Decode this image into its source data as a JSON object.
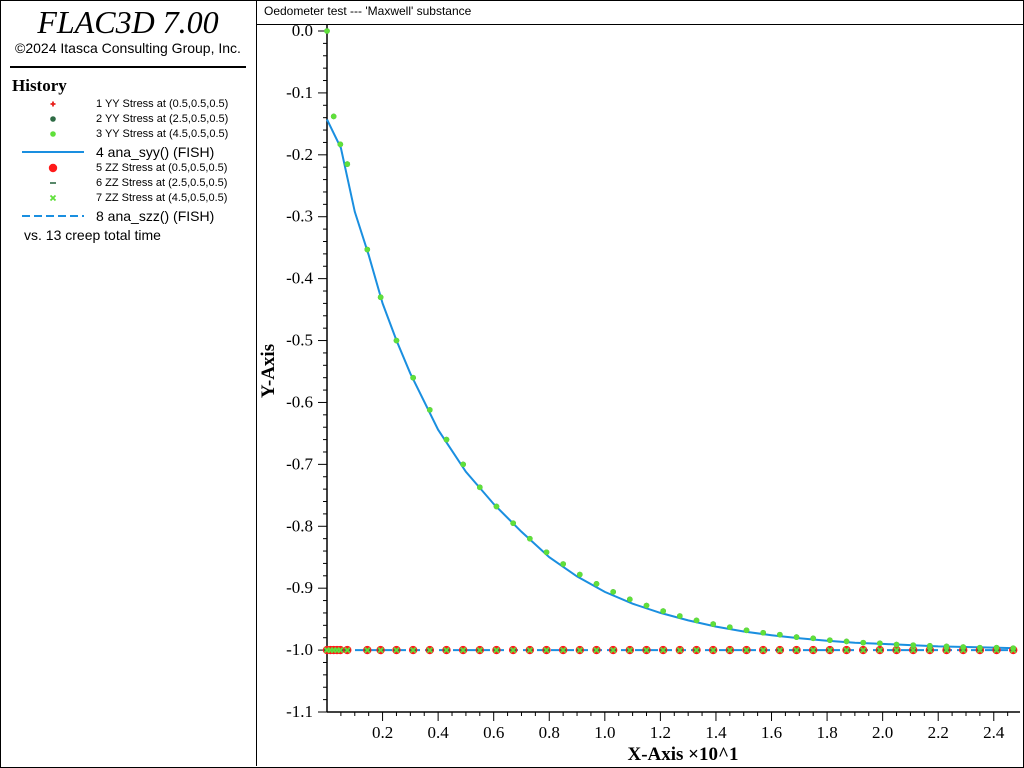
{
  "app": {
    "title": "FLAC3D 7.00",
    "copyright": "©2024 Itasca Consulting Group, Inc."
  },
  "legend": {
    "heading": "History",
    "footer": "vs. 13 creep total time",
    "items": [
      {
        "label": "1 YY Stress at (0.5,0.5,0.5)",
        "marker": "plus",
        "color": "#e8201c"
      },
      {
        "label": "2 YY Stress at (2.5,0.5,0.5)",
        "marker": "dot",
        "color": "#2e6b45"
      },
      {
        "label": "3 YY Stress at (4.5,0.5,0.5)",
        "marker": "dot",
        "color": "#5fe03a"
      },
      {
        "label": "4 ana_syy() (FISH)",
        "marker": "solid-line",
        "color": "#1a8fe0"
      },
      {
        "label": "5 ZZ Stress at (0.5,0.5,0.5)",
        "marker": "big-dot",
        "color": "#ff1a1a"
      },
      {
        "label": "6 ZZ Stress at (2.5,0.5,0.5)",
        "marker": "dash",
        "color": "#2e6b45"
      },
      {
        "label": "7 ZZ Stress at (4.5,0.5,0.5)",
        "marker": "x",
        "color": "#5fe03a"
      },
      {
        "label": "8 ana_szz() (FISH)",
        "marker": "dashed-line",
        "color": "#1a8fe0"
      }
    ]
  },
  "chart_data": {
    "type": "line",
    "title": "Oedometer test --- 'Maxwell' substance",
    "xlabel": "X-Axis ×10^1",
    "ylabel": "Y-Axis",
    "xlim": [
      0.0,
      2.48
    ],
    "ylim": [
      -1.1,
      0.0
    ],
    "xticks": [
      "0.2",
      "0.4",
      "0.6",
      "0.8",
      "1.0",
      "1.2",
      "1.4",
      "1.6",
      "1.8",
      "2.0",
      "2.2",
      "2.4"
    ],
    "yticks": [
      "0.0",
      "-0.1",
      "-0.2",
      "-0.3",
      "-0.4",
      "-0.5",
      "-0.6",
      "-0.7",
      "-0.8",
      "-0.9",
      "-1.0",
      "-1.1"
    ],
    "grid": false,
    "series": [
      {
        "name": "1 YY Stress at (0.5,0.5,0.5)",
        "color": "#e8201c",
        "style": "markers",
        "x": [
          0.0,
          0.024,
          0.048,
          0.073,
          0.145,
          0.193,
          0.25,
          0.31,
          0.37,
          0.43,
          0.49,
          0.55,
          0.61,
          0.67,
          0.73,
          0.79,
          0.85,
          0.91,
          0.97,
          1.03,
          1.09,
          1.15,
          1.21,
          1.27,
          1.33,
          1.39,
          1.45,
          1.51,
          1.57,
          1.63,
          1.69,
          1.75,
          1.81,
          1.87,
          1.93,
          1.99,
          2.05,
          2.11,
          2.17,
          2.23,
          2.29,
          2.35,
          2.41,
          2.47
        ],
        "y": [
          0.0,
          -0.138,
          -0.183,
          -0.215,
          -0.353,
          -0.43,
          -0.5,
          -0.56,
          -0.612,
          -0.66,
          -0.7,
          -0.737,
          -0.768,
          -0.795,
          -0.82,
          -0.842,
          -0.861,
          -0.878,
          -0.893,
          -0.906,
          -0.918,
          -0.928,
          -0.937,
          -0.945,
          -0.952,
          -0.958,
          -0.963,
          -0.968,
          -0.972,
          -0.975,
          -0.979,
          -0.981,
          -0.984,
          -0.986,
          -0.988,
          -0.989,
          -0.991,
          -0.992,
          -0.993,
          -0.994,
          -0.995,
          -0.996,
          -0.996,
          -0.997
        ]
      },
      {
        "name": "2 YY Stress at (2.5,0.5,0.5)",
        "color": "#2e6b45",
        "style": "markers",
        "x": [
          0.0,
          0.024,
          0.048,
          0.073,
          0.145,
          0.193,
          0.25,
          0.31,
          0.37,
          0.43,
          0.49,
          0.55,
          0.61,
          0.67,
          0.73,
          0.79,
          0.85,
          0.91,
          0.97,
          1.03,
          1.09,
          1.15,
          1.21,
          1.27,
          1.33,
          1.39,
          1.45,
          1.51,
          1.57,
          1.63,
          1.69,
          1.75,
          1.81,
          1.87,
          1.93,
          1.99,
          2.05,
          2.11,
          2.17,
          2.23,
          2.29,
          2.35,
          2.41,
          2.47
        ],
        "y": [
          0.0,
          -0.138,
          -0.183,
          -0.215,
          -0.353,
          -0.43,
          -0.5,
          -0.56,
          -0.612,
          -0.66,
          -0.7,
          -0.737,
          -0.768,
          -0.795,
          -0.82,
          -0.842,
          -0.861,
          -0.878,
          -0.893,
          -0.906,
          -0.918,
          -0.928,
          -0.937,
          -0.945,
          -0.952,
          -0.958,
          -0.963,
          -0.968,
          -0.972,
          -0.975,
          -0.979,
          -0.981,
          -0.984,
          -0.986,
          -0.988,
          -0.989,
          -0.991,
          -0.992,
          -0.993,
          -0.994,
          -0.995,
          -0.996,
          -0.996,
          -0.997
        ]
      },
      {
        "name": "3 YY Stress at (4.5,0.5,0.5)",
        "color": "#5fe03a",
        "style": "markers",
        "x": [
          0.0,
          0.024,
          0.048,
          0.073,
          0.145,
          0.193,
          0.25,
          0.31,
          0.37,
          0.43,
          0.49,
          0.55,
          0.61,
          0.67,
          0.73,
          0.79,
          0.85,
          0.91,
          0.97,
          1.03,
          1.09,
          1.15,
          1.21,
          1.27,
          1.33,
          1.39,
          1.45,
          1.51,
          1.57,
          1.63,
          1.69,
          1.75,
          1.81,
          1.87,
          1.93,
          1.99,
          2.05,
          2.11,
          2.17,
          2.23,
          2.29,
          2.35,
          2.41,
          2.47
        ],
        "y": [
          0.0,
          -0.138,
          -0.183,
          -0.215,
          -0.353,
          -0.43,
          -0.5,
          -0.56,
          -0.612,
          -0.66,
          -0.7,
          -0.737,
          -0.768,
          -0.795,
          -0.82,
          -0.842,
          -0.861,
          -0.878,
          -0.893,
          -0.906,
          -0.918,
          -0.928,
          -0.937,
          -0.945,
          -0.952,
          -0.958,
          -0.963,
          -0.968,
          -0.972,
          -0.975,
          -0.979,
          -0.981,
          -0.984,
          -0.986,
          -0.988,
          -0.989,
          -0.991,
          -0.992,
          -0.993,
          -0.994,
          -0.995,
          -0.996,
          -0.996,
          -0.997
        ]
      },
      {
        "name": "4 ana_syy() (FISH)",
        "color": "#1a8fe0",
        "style": "solid-line",
        "x": [
          0.0,
          0.05,
          0.1,
          0.15,
          0.2,
          0.25,
          0.3,
          0.4,
          0.5,
          0.6,
          0.7,
          0.8,
          0.9,
          1.0,
          1.1,
          1.2,
          1.3,
          1.4,
          1.5,
          1.6,
          1.7,
          1.8,
          1.9,
          2.0,
          2.1,
          2.2,
          2.3,
          2.4,
          2.48
        ],
        "y": [
          -0.143,
          -0.189,
          -0.292,
          -0.362,
          -0.44,
          -0.5,
          -0.553,
          -0.644,
          -0.712,
          -0.764,
          -0.809,
          -0.85,
          -0.881,
          -0.906,
          -0.925,
          -0.94,
          -0.952,
          -0.962,
          -0.97,
          -0.976,
          -0.981,
          -0.985,
          -0.988,
          -0.99,
          -0.992,
          -0.994,
          -0.995,
          -0.996,
          -0.997
        ]
      },
      {
        "name": "5 ZZ Stress at (0.5,0.5,0.5)",
        "color": "#ff1a1a",
        "style": "markers",
        "x": [
          0.0,
          0.012,
          0.024,
          0.036,
          0.048,
          0.073,
          0.145,
          0.193,
          0.25,
          0.31,
          0.37,
          0.43,
          0.49,
          0.55,
          0.61,
          0.67,
          0.73,
          0.79,
          0.85,
          0.91,
          0.97,
          1.03,
          1.09,
          1.15,
          1.21,
          1.27,
          1.33,
          1.39,
          1.45,
          1.51,
          1.57,
          1.63,
          1.69,
          1.75,
          1.81,
          1.87,
          1.93,
          1.99,
          2.05,
          2.11,
          2.17,
          2.23,
          2.29,
          2.35,
          2.41,
          2.47
        ],
        "y": [
          -1.0,
          -1.0,
          -1.0,
          -1.0,
          -1.0,
          -1.0,
          -1.0,
          -1.0,
          -1.0,
          -1.0,
          -1.0,
          -1.0,
          -1.0,
          -1.0,
          -1.0,
          -1.0,
          -1.0,
          -1.0,
          -1.0,
          -1.0,
          -1.0,
          -1.0,
          -1.0,
          -1.0,
          -1.0,
          -1.0,
          -1.0,
          -1.0,
          -1.0,
          -1.0,
          -1.0,
          -1.0,
          -1.0,
          -1.0,
          -1.0,
          -1.0,
          -1.0,
          -1.0,
          -1.0,
          -1.0,
          -1.0,
          -1.0,
          -1.0,
          -1.0,
          -1.0,
          -1.0
        ]
      },
      {
        "name": "6 ZZ Stress at (2.5,0.5,0.5)",
        "color": "#2e6b45",
        "style": "markers",
        "x": [
          0.0,
          0.012,
          0.024,
          0.036,
          0.048,
          0.073,
          0.145,
          0.193,
          0.25,
          0.31,
          0.37,
          0.43,
          0.49,
          0.55,
          0.61,
          0.67,
          0.73,
          0.79,
          0.85,
          0.91,
          0.97,
          1.03,
          1.09,
          1.15,
          1.21,
          1.27,
          1.33,
          1.39,
          1.45,
          1.51,
          1.57,
          1.63,
          1.69,
          1.75,
          1.81,
          1.87,
          1.93,
          1.99,
          2.05,
          2.11,
          2.17,
          2.23,
          2.29,
          2.35,
          2.41,
          2.47
        ],
        "y": [
          -1.0,
          -1.0,
          -1.0,
          -1.0,
          -1.0,
          -1.0,
          -1.0,
          -1.0,
          -1.0,
          -1.0,
          -1.0,
          -1.0,
          -1.0,
          -1.0,
          -1.0,
          -1.0,
          -1.0,
          -1.0,
          -1.0,
          -1.0,
          -1.0,
          -1.0,
          -1.0,
          -1.0,
          -1.0,
          -1.0,
          -1.0,
          -1.0,
          -1.0,
          -1.0,
          -1.0,
          -1.0,
          -1.0,
          -1.0,
          -1.0,
          -1.0,
          -1.0,
          -1.0,
          -1.0,
          -1.0,
          -1.0,
          -1.0,
          -1.0,
          -1.0,
          -1.0,
          -1.0
        ]
      },
      {
        "name": "7 ZZ Stress at (4.5,0.5,0.5)",
        "color": "#5fe03a",
        "style": "markers",
        "x": [
          0.0,
          0.012,
          0.024,
          0.036,
          0.048,
          0.073,
          0.145,
          0.193,
          0.25,
          0.31,
          0.37,
          0.43,
          0.49,
          0.55,
          0.61,
          0.67,
          0.73,
          0.79,
          0.85,
          0.91,
          0.97,
          1.03,
          1.09,
          1.15,
          1.21,
          1.27,
          1.33,
          1.39,
          1.45,
          1.51,
          1.57,
          1.63,
          1.69,
          1.75,
          1.81,
          1.87,
          1.93,
          1.99,
          2.05,
          2.11,
          2.17,
          2.23,
          2.29,
          2.35,
          2.41,
          2.47
        ],
        "y": [
          -1.0,
          -1.0,
          -1.0,
          -1.0,
          -1.0,
          -1.0,
          -1.0,
          -1.0,
          -1.0,
          -1.0,
          -1.0,
          -1.0,
          -1.0,
          -1.0,
          -1.0,
          -1.0,
          -1.0,
          -1.0,
          -1.0,
          -1.0,
          -1.0,
          -1.0,
          -1.0,
          -1.0,
          -1.0,
          -1.0,
          -1.0,
          -1.0,
          -1.0,
          -1.0,
          -1.0,
          -1.0,
          -1.0,
          -1.0,
          -1.0,
          -1.0,
          -1.0,
          -1.0,
          -1.0,
          -1.0,
          -1.0,
          -1.0,
          -1.0,
          -1.0,
          -1.0,
          -1.0
        ]
      },
      {
        "name": "8 ana_szz() (FISH)",
        "color": "#1a8fe0",
        "style": "dashed-line",
        "x": [
          0.0,
          2.48
        ],
        "y": [
          -1.0,
          -1.0
        ]
      }
    ]
  }
}
